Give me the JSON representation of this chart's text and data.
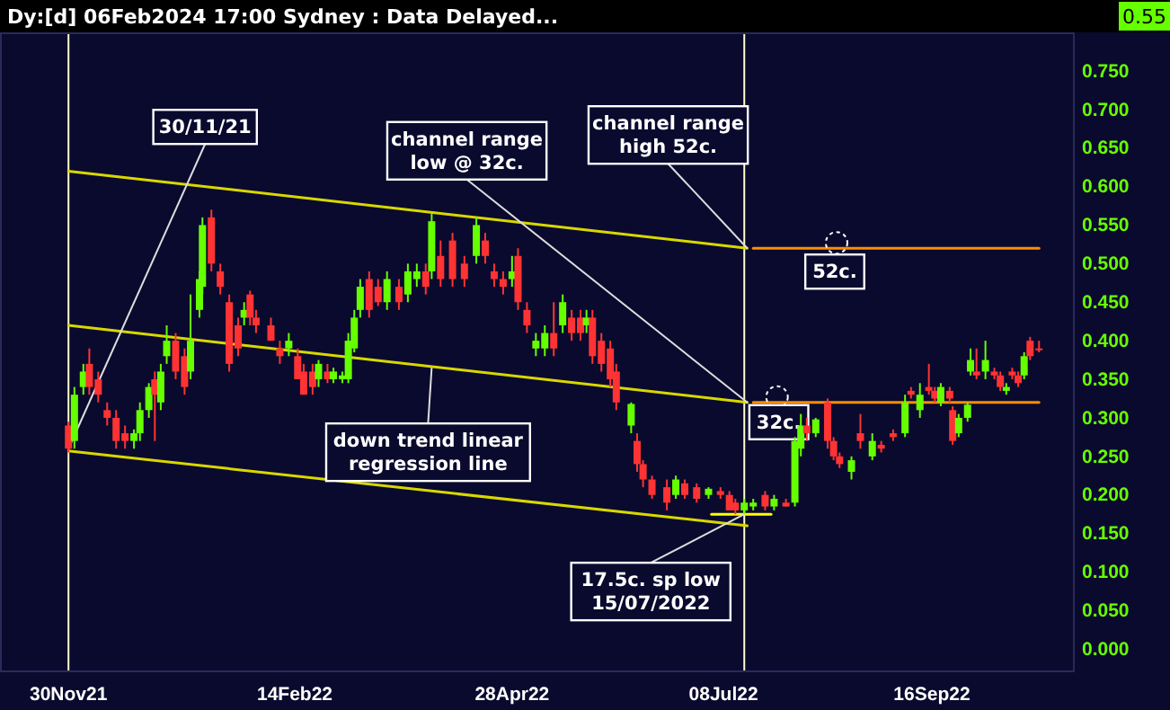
{
  "chart_data": {
    "type": "candlestick",
    "title": "Dy:[d] 06Feb2024 17:00 Sydney : Data Delayed...",
    "x": [
      "2021-11-30",
      "2021-12-02",
      "2021-12-05",
      "2021-12-07",
      "2021-12-10",
      "2021-12-13",
      "2021-12-16",
      "2021-12-19",
      "2021-12-22",
      "2021-12-24",
      "2021-12-27",
      "2021-12-29",
      "2021-12-31",
      "2022-01-02",
      "2022-01-05",
      "2022-01-08",
      "2022-01-10",
      "2022-01-13",
      "2022-01-14",
      "2022-01-17",
      "2022-01-20",
      "2022-01-23",
      "2022-01-26",
      "2022-01-28",
      "2022-01-30",
      "2022-02-01",
      "2022-02-06",
      "2022-02-09",
      "2022-02-12",
      "2022-02-15",
      "2022-02-17",
      "2022-02-20",
      "2022-02-22",
      "2022-02-25",
      "2022-02-27",
      "2022-03-02",
      "2022-03-04",
      "2022-03-06",
      "2022-03-08",
      "2022-03-11",
      "2022-03-14",
      "2022-03-17",
      "2022-03-21",
      "2022-03-24",
      "2022-03-27",
      "2022-03-30",
      "2022-04-01",
      "2022-04-04",
      "2022-04-08",
      "2022-04-12",
      "2022-04-16",
      "2022-04-19",
      "2022-04-22",
      "2022-04-25",
      "2022-04-28",
      "2022-04-30",
      "2022-05-03",
      "2022-05-06",
      "2022-05-09",
      "2022-05-12",
      "2022-05-15",
      "2022-05-18",
      "2022-05-21",
      "2022-05-23",
      "2022-05-25",
      "2022-05-28",
      "2022-05-31",
      "2022-06-02",
      "2022-06-07",
      "2022-06-09",
      "2022-06-11",
      "2022-06-14",
      "2022-06-19",
      "2022-06-22",
      "2022-06-25",
      "2022-06-29",
      "2022-07-03",
      "2022-07-07",
      "2022-07-10",
      "2022-07-12",
      "2022-07-15",
      "2022-07-18",
      "2022-07-22",
      "2022-07-25",
      "2022-07-29",
      "2022-08-01",
      "2022-08-03",
      "2022-08-05",
      "2022-08-08",
      "2022-08-12",
      "2022-08-14",
      "2022-08-16",
      "2022-08-20",
      "2022-08-23",
      "2022-08-27",
      "2022-08-30",
      "2022-09-03",
      "2022-09-07",
      "2022-09-09",
      "2022-09-12",
      "2022-09-15",
      "2022-09-17",
      "2022-09-19",
      "2022-09-22",
      "2022-09-23",
      "2022-09-25",
      "2022-09-28",
      "2022-09-29",
      "2022-10-01",
      "2022-10-04",
      "2022-10-07",
      "2022-10-09",
      "2022-10-11",
      "2022-10-13",
      "2022-10-15",
      "2022-10-17",
      "2022-10-19",
      "2022-10-22"
    ],
    "ohlc": [
      [
        0.29,
        0.295,
        0.255,
        0.26
      ],
      [
        0.27,
        0.34,
        0.26,
        0.33
      ],
      [
        0.34,
        0.37,
        0.33,
        0.36
      ],
      [
        0.37,
        0.39,
        0.33,
        0.34
      ],
      [
        0.35,
        0.36,
        0.32,
        0.33
      ],
      [
        0.31,
        0.32,
        0.29,
        0.3
      ],
      [
        0.3,
        0.31,
        0.26,
        0.27
      ],
      [
        0.28,
        0.29,
        0.26,
        0.27
      ],
      [
        0.27,
        0.285,
        0.26,
        0.28
      ],
      [
        0.28,
        0.32,
        0.27,
        0.31
      ],
      [
        0.31,
        0.345,
        0.3,
        0.34
      ],
      [
        0.35,
        0.36,
        0.27,
        0.33
      ],
      [
        0.32,
        0.37,
        0.31,
        0.36
      ],
      [
        0.38,
        0.42,
        0.37,
        0.4
      ],
      [
        0.4,
        0.41,
        0.35,
        0.36
      ],
      [
        0.38,
        0.39,
        0.33,
        0.34
      ],
      [
        0.36,
        0.46,
        0.35,
        0.4
      ],
      [
        0.44,
        0.49,
        0.43,
        0.48
      ],
      [
        0.47,
        0.56,
        0.46,
        0.55
      ],
      [
        0.56,
        0.57,
        0.49,
        0.5
      ],
      [
        0.49,
        0.5,
        0.46,
        0.47
      ],
      [
        0.45,
        0.46,
        0.36,
        0.37
      ],
      [
        0.42,
        0.43,
        0.38,
        0.39
      ],
      [
        0.43,
        0.45,
        0.42,
        0.44
      ],
      [
        0.46,
        0.465,
        0.42,
        0.43
      ],
      [
        0.43,
        0.44,
        0.41,
        0.42
      ],
      [
        0.42,
        0.43,
        0.4,
        0.4
      ],
      [
        0.39,
        0.4,
        0.37,
        0.38
      ],
      [
        0.39,
        0.41,
        0.38,
        0.4
      ],
      [
        0.38,
        0.39,
        0.35,
        0.35
      ],
      [
        0.36,
        0.37,
        0.33,
        0.33
      ],
      [
        0.36,
        0.37,
        0.33,
        0.34
      ],
      [
        0.35,
        0.375,
        0.34,
        0.37
      ],
      [
        0.36,
        0.37,
        0.345,
        0.35
      ],
      [
        0.35,
        0.365,
        0.345,
        0.36
      ],
      [
        0.35,
        0.36,
        0.345,
        0.355
      ],
      [
        0.35,
        0.41,
        0.345,
        0.4
      ],
      [
        0.39,
        0.44,
        0.385,
        0.43
      ],
      [
        0.44,
        0.48,
        0.43,
        0.47
      ],
      [
        0.48,
        0.49,
        0.43,
        0.44
      ],
      [
        0.47,
        0.48,
        0.445,
        0.45
      ],
      [
        0.45,
        0.49,
        0.44,
        0.48
      ],
      [
        0.47,
        0.48,
        0.44,
        0.45
      ],
      [
        0.46,
        0.5,
        0.45,
        0.49
      ],
      [
        0.48,
        0.5,
        0.47,
        0.49
      ],
      [
        0.49,
        0.5,
        0.46,
        0.47
      ],
      [
        0.49,
        0.565,
        0.48,
        0.555
      ],
      [
        0.51,
        0.53,
        0.47,
        0.48
      ],
      [
        0.53,
        0.54,
        0.47,
        0.48
      ],
      [
        0.5,
        0.51,
        0.47,
        0.48
      ],
      [
        0.51,
        0.56,
        0.5,
        0.55
      ],
      [
        0.53,
        0.54,
        0.5,
        0.51
      ],
      [
        0.49,
        0.5,
        0.47,
        0.48
      ],
      [
        0.48,
        0.49,
        0.46,
        0.47
      ],
      [
        0.48,
        0.51,
        0.47,
        0.49
      ],
      [
        0.51,
        0.52,
        0.44,
        0.45
      ],
      [
        0.44,
        0.45,
        0.41,
        0.42
      ],
      [
        0.39,
        0.41,
        0.38,
        0.4
      ],
      [
        0.39,
        0.42,
        0.38,
        0.41
      ],
      [
        0.41,
        0.45,
        0.38,
        0.39
      ],
      [
        0.42,
        0.46,
        0.41,
        0.45
      ],
      [
        0.43,
        0.44,
        0.4,
        0.41
      ],
      [
        0.43,
        0.44,
        0.4,
        0.41
      ],
      [
        0.42,
        0.44,
        0.41,
        0.43
      ],
      [
        0.43,
        0.44,
        0.37,
        0.38
      ],
      [
        0.4,
        0.41,
        0.36,
        0.37
      ],
      [
        0.39,
        0.4,
        0.34,
        0.35
      ],
      [
        0.36,
        0.37,
        0.31,
        0.32
      ],
      [
        0.29,
        0.32,
        0.28,
        0.318
      ],
      [
        0.27,
        0.28,
        0.23,
        0.24
      ],
      [
        0.24,
        0.245,
        0.21,
        0.22
      ],
      [
        0.22,
        0.225,
        0.195,
        0.2
      ],
      [
        0.21,
        0.22,
        0.18,
        0.19
      ],
      [
        0.2,
        0.225,
        0.195,
        0.22
      ],
      [
        0.215,
        0.22,
        0.195,
        0.2
      ],
      [
        0.21,
        0.215,
        0.19,
        0.195
      ],
      [
        0.2,
        0.21,
        0.195,
        0.208
      ],
      [
        0.205,
        0.21,
        0.195,
        0.2
      ],
      [
        0.2,
        0.205,
        0.18,
        0.18
      ],
      [
        0.19,
        0.195,
        0.175,
        0.18
      ],
      [
        0.18,
        0.195,
        0.175,
        0.19
      ],
      [
        0.185,
        0.195,
        0.18,
        0.19
      ],
      [
        0.2,
        0.205,
        0.18,
        0.185
      ],
      [
        0.185,
        0.2,
        0.18,
        0.195
      ],
      [
        0.19,
        0.195,
        0.185,
        0.185
      ],
      [
        0.19,
        0.275,
        0.185,
        0.27
      ],
      [
        0.26,
        0.305,
        0.25,
        0.29
      ],
      [
        0.29,
        0.3,
        0.27,
        0.28
      ],
      [
        0.28,
        0.3,
        0.275,
        0.298
      ],
      [
        0.32,
        0.325,
        0.26,
        0.27
      ],
      [
        0.27,
        0.275,
        0.245,
        0.25
      ],
      [
        0.25,
        0.255,
        0.235,
        0.24
      ],
      [
        0.23,
        0.25,
        0.22,
        0.245
      ],
      [
        0.28,
        0.305,
        0.26,
        0.27
      ],
      [
        0.25,
        0.28,
        0.245,
        0.27
      ],
      [
        0.265,
        0.27,
        0.255,
        0.26
      ],
      [
        0.28,
        0.285,
        0.27,
        0.275
      ],
      [
        0.28,
        0.33,
        0.275,
        0.32
      ],
      [
        0.335,
        0.34,
        0.325,
        0.33
      ],
      [
        0.31,
        0.345,
        0.3,
        0.33
      ],
      [
        0.34,
        0.37,
        0.33,
        0.335
      ],
      [
        0.335,
        0.34,
        0.32,
        0.325
      ],
      [
        0.32,
        0.345,
        0.315,
        0.34
      ],
      [
        0.335,
        0.34,
        0.32,
        0.325
      ],
      [
        0.31,
        0.315,
        0.265,
        0.27
      ],
      [
        0.28,
        0.305,
        0.275,
        0.3
      ],
      [
        0.3,
        0.32,
        0.295,
        0.317
      ],
      [
        0.36,
        0.39,
        0.355,
        0.375
      ],
      [
        0.36,
        0.39,
        0.35,
        0.355
      ],
      [
        0.36,
        0.4,
        0.35,
        0.375
      ],
      [
        0.36,
        0.365,
        0.35,
        0.355
      ],
      [
        0.355,
        0.36,
        0.335,
        0.34
      ],
      [
        0.335,
        0.345,
        0.33,
        0.34
      ],
      [
        0.36,
        0.365,
        0.35,
        0.355
      ],
      [
        0.355,
        0.36,
        0.34,
        0.345
      ],
      [
        0.355,
        0.385,
        0.35,
        0.38
      ],
      [
        0.4,
        0.405,
        0.375,
        0.38
      ],
      [
        0.39,
        0.4,
        0.385,
        0.388
      ]
    ],
    "series": [
      {
        "type": "line",
        "color": "#d8d800",
        "x": [
          "2021-11-30",
          "2022-07-16"
        ],
        "values": [
          0.62,
          0.52
        ]
      },
      {
        "type": "line",
        "color": "#d8d800",
        "x": [
          "2021-11-30",
          "2022-07-16"
        ],
        "values": [
          0.42,
          0.32
        ]
      },
      {
        "type": "line",
        "color": "#d8d800",
        "x": [
          "2021-11-30",
          "2022-07-16"
        ],
        "values": [
          0.257,
          0.16
        ]
      },
      {
        "type": "line",
        "color": "#ff8c00",
        "x": [
          "2022-07-18",
          "2022-10-22"
        ],
        "values": [
          0.52,
          0.52
        ]
      },
      {
        "type": "line",
        "color": "#ff8c00",
        "x": [
          "2022-07-18",
          "2022-10-22"
        ],
        "values": [
          0.32,
          0.32
        ]
      },
      {
        "type": "line",
        "color": "#ffff00",
        "x": [
          "2022-07-04",
          "2022-07-24"
        ],
        "values": [
          0.175,
          0.175
        ]
      }
    ],
    "ref_lines": [
      {
        "axis": "x",
        "value": "2021-11-30",
        "color": "#ffffcc"
      },
      {
        "axis": "x",
        "value": "2022-07-15",
        "color": "#ffffcc"
      }
    ],
    "annotations": [
      {
        "text": "30/11/21",
        "x": "2021-11-30",
        "y": 0.26
      },
      {
        "text": "channel range low @ 32c.",
        "x": "2022-07-16",
        "y": 0.32
      },
      {
        "text": "channel range high 52c.",
        "x": "2022-07-16",
        "y": 0.52
      },
      {
        "text": "52c.",
        "x": "2022-08-15",
        "y": 0.52
      },
      {
        "text": "32c.",
        "x": "2022-07-26",
        "y": 0.32
      },
      {
        "text": "down trend linear regression line",
        "x": "2022-04-01",
        "y": 0.365
      },
      {
        "text": "17.5c. sp low 15/07/2022",
        "x": "2022-07-15",
        "y": 0.175
      },
      "0.55"
    ],
    "xlim": [
      "2021-11-07",
      "2022-11-03"
    ],
    "xticks": [
      {
        "value": "2021-11-30",
        "label": "30Nov21"
      },
      {
        "value": "2022-02-14",
        "label": "14Feb22"
      },
      {
        "value": "2022-04-28",
        "label": "28Apr22"
      },
      {
        "value": "2022-07-08",
        "label": "08Jul22"
      },
      {
        "value": "2022-09-16",
        "label": "16Sep22"
      }
    ],
    "ylim": [
      -0.03,
      0.8
    ],
    "yticks": [
      {
        "value": 0,
        "label": "0.000"
      },
      {
        "value": 0.05,
        "label": "0.050"
      },
      {
        "value": 0.1,
        "label": "0.100"
      },
      {
        "value": 0.15,
        "label": "0.150"
      },
      {
        "value": 0.2,
        "label": "0.200"
      },
      {
        "value": 0.25,
        "label": "0.250"
      },
      {
        "value": 0.3,
        "label": "0.300"
      },
      {
        "value": 0.35,
        "label": "0.350"
      },
      {
        "value": 0.4,
        "label": "0.400"
      },
      {
        "value": 0.45,
        "label": "0.450"
      },
      {
        "value": 0.5,
        "label": "0.500"
      },
      {
        "value": 0.55,
        "label": "0.550"
      },
      {
        "value": 0.6,
        "label": "0.600"
      },
      {
        "value": 0.65,
        "label": "0.650"
      },
      {
        "value": 0.7,
        "label": "0.700"
      },
      {
        "value": 0.75,
        "label": "0.750"
      }
    ],
    "grid": false
  }
}
